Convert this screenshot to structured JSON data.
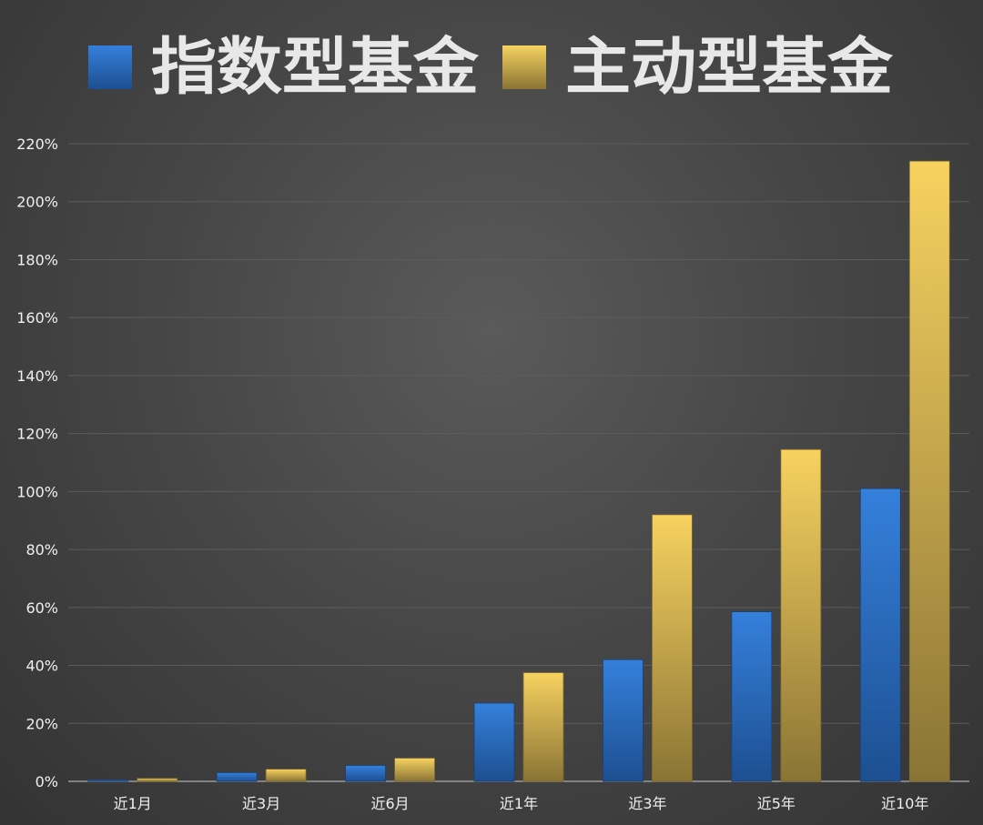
{
  "chart_data": {
    "type": "bar",
    "categories": [
      "近1月",
      "近3月",
      "近6月",
      "近1年",
      "近3年",
      "近5年",
      "近10年"
    ],
    "series": [
      {
        "name": "指数型基金",
        "values": [
          0.5,
          3,
          5.5,
          27,
          42,
          58.5,
          101
        ],
        "color": "#2f78d0"
      },
      {
        "name": "主动型基金",
        "values": [
          1,
          4.2,
          8,
          37.5,
          92,
          114.5,
          214
        ],
        "color": "#f3cc5a"
      }
    ],
    "ylim": [
      0,
      220
    ],
    "yticks": [
      0,
      20,
      40,
      60,
      80,
      100,
      120,
      140,
      160,
      180,
      200,
      220
    ],
    "ytick_labels": [
      "0%",
      "20%",
      "40%",
      "60%",
      "80%",
      "100%",
      "120%",
      "140%",
      "160%",
      "180%",
      "200%",
      "220%"
    ],
    "grid": true,
    "legend": "top",
    "colors": {
      "background": "#444444",
      "grid": "#5c5c5c",
      "text": "#f0f0f0"
    }
  }
}
